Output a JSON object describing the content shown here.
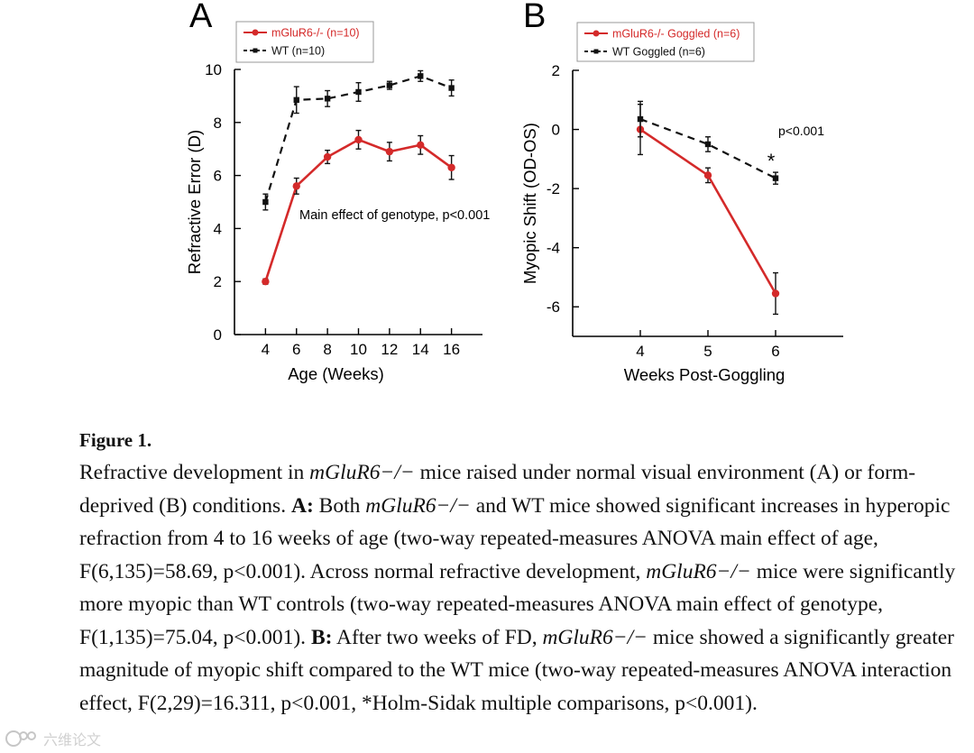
{
  "chart_data": [
    {
      "panel_label": "A",
      "type": "line",
      "xlabel": "Age (Weeks)",
      "ylabel": "Refractive Error (D)",
      "x": [
        4,
        6,
        8,
        10,
        12,
        14,
        16
      ],
      "xlim": [
        2,
        18
      ],
      "ylim": [
        0,
        10
      ],
      "xticks": [
        4,
        6,
        8,
        10,
        12,
        14,
        16
      ],
      "yticks": [
        0,
        2,
        4,
        6,
        8,
        10
      ],
      "series": [
        {
          "name": "mGluR6-/- (n=10)",
          "color": "#d42a2a",
          "style": "solid",
          "values": [
            2.0,
            5.6,
            6.7,
            7.35,
            6.9,
            7.15,
            6.3
          ],
          "errors": [
            0.1,
            0.3,
            0.25,
            0.35,
            0.35,
            0.35,
            0.45
          ]
        },
        {
          "name": "WT (n=10)",
          "color": "#111111",
          "style": "dashed",
          "values": [
            5.0,
            8.85,
            8.9,
            9.15,
            9.4,
            9.75,
            9.3
          ],
          "errors": [
            0.3,
            0.5,
            0.3,
            0.35,
            0.15,
            0.2,
            0.3
          ]
        }
      ],
      "annotations": [
        "Main effect of genotype, p<0.001"
      ],
      "legend": "top-left"
    },
    {
      "panel_label": "B",
      "type": "line",
      "xlabel": "Weeks Post-Goggling",
      "ylabel": "Myopic Shift (OD-OS)",
      "x": [
        4,
        5,
        6
      ],
      "xlim": [
        3,
        7
      ],
      "ylim": [
        -7,
        2
      ],
      "xticks": [
        4,
        5,
        6
      ],
      "yticks": [
        2,
        0,
        -2,
        -4,
        -6
      ],
      "series": [
        {
          "name": "mGluR6-/- Goggled (n=6)",
          "color": "#d42a2a",
          "style": "solid",
          "values": [
            0.0,
            -1.55,
            -5.55
          ],
          "errors": [
            0.85,
            0.25,
            0.7
          ]
        },
        {
          "name": "WT Goggled (n=6)",
          "color": "#111111",
          "style": "dashed",
          "values": [
            0.35,
            -0.5,
            -1.65
          ],
          "errors": [
            0.6,
            0.25,
            0.2
          ]
        }
      ],
      "annotations": [
        "p<0.001",
        "*"
      ],
      "legend": "top"
    }
  ],
  "caption": {
    "title": "Figure 1.",
    "p1": "Refractive development in ",
    "gene": "mGluR6−/−",
    "p2": " mice raised under normal visual environment (A) or form-deprived (B) conditions. ",
    "a_label": "A:",
    "p3": " Both ",
    "p4": " and WT mice showed significant increases in hyperopic refraction from 4 to 16 weeks of age (two-way repeated-measures ANOVA main effect of age, F(6,135)=58.69, p<0.001). Across normal refractive development, ",
    "p5": " mice were significantly more myopic than WT controls (two-way repeated-measures ANOVA main effect of genotype, F(1,135)=75.04, p<0.001). ",
    "b_label": "B:",
    "p6": " After two weeks of FD, ",
    "p7": " mice showed a significantly greater magnitude of myopic shift compared to the WT mice (two-way repeated-measures ANOVA interaction effect, F(2,29)=16.311, p<0.001, *Holm-Sidak multiple comparisons, p<0.001)."
  },
  "watermark": {
    "text": "六维论文"
  }
}
